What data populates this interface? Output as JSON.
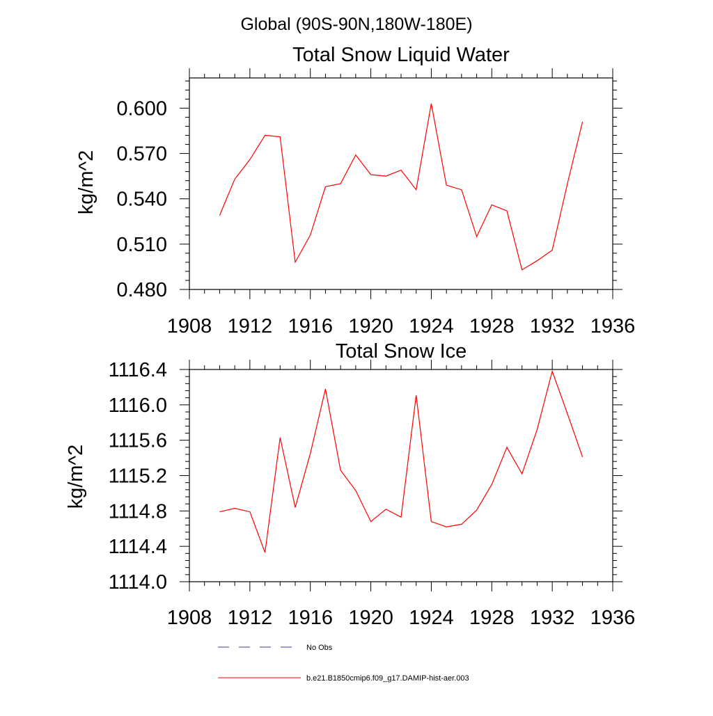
{
  "figure": {
    "suptitle": "Global (90S-90N,180W-180E)"
  },
  "chart_data": [
    {
      "type": "line",
      "title": "Total Snow Liquid Water",
      "xlabel": "",
      "ylabel": "kg/m^2",
      "xlim": [
        1908,
        1936
      ],
      "ylim": [
        0.48,
        0.62
      ],
      "x_ticks": [
        "1908",
        "1912",
        "1916",
        "1920",
        "1924",
        "1928",
        "1932",
        "1936"
      ],
      "y_ticks": [
        "0.480",
        "0.510",
        "0.540",
        "0.570",
        "0.600"
      ],
      "y_tick_values": [
        0.48,
        0.51,
        0.54,
        0.57,
        0.6
      ],
      "x_tick_values": [
        1908,
        1912,
        1916,
        1920,
        1924,
        1928,
        1932,
        1936
      ],
      "grid": false,
      "series": [
        {
          "name": "b.e21.B1850cmip6.f09_g17.DAMIP-hist-aer.003",
          "color": "#ff0000",
          "x": [
            1910,
            1911,
            1912,
            1913,
            1914,
            1915,
            1916,
            1917,
            1918,
            1919,
            1920,
            1921,
            1922,
            1923,
            1924,
            1925,
            1926,
            1927,
            1928,
            1929,
            1930,
            1931,
            1932,
            1933,
            1934
          ],
          "values": [
            0.529,
            0.553,
            0.566,
            0.582,
            0.581,
            0.498,
            0.516,
            0.548,
            0.55,
            0.569,
            0.556,
            0.555,
            0.559,
            0.546,
            0.603,
            0.549,
            0.546,
            0.515,
            0.536,
            0.532,
            0.493,
            0.499,
            0.506,
            0.55,
            0.591
          ]
        }
      ]
    },
    {
      "type": "line",
      "title": "Total Snow Ice",
      "xlabel": "",
      "ylabel": "kg/m^2",
      "xlim": [
        1908,
        1936
      ],
      "ylim": [
        1114.0,
        1116.4
      ],
      "x_ticks": [
        "1908",
        "1912",
        "1916",
        "1920",
        "1924",
        "1928",
        "1932",
        "1936"
      ],
      "y_ticks": [
        "1114.0",
        "1114.4",
        "1114.8",
        "1115.2",
        "1115.6",
        "1116.0",
        "1116.4"
      ],
      "y_tick_values": [
        1114.0,
        1114.4,
        1114.8,
        1115.2,
        1115.6,
        1116.0,
        1116.4
      ],
      "x_tick_values": [
        1908,
        1912,
        1916,
        1920,
        1924,
        1928,
        1932,
        1936
      ],
      "grid": false,
      "series": [
        {
          "name": "b.e21.B1850cmip6.f09_g17.DAMIP-hist-aer.003",
          "color": "#ff0000",
          "x": [
            1910,
            1911,
            1912,
            1913,
            1914,
            1915,
            1916,
            1917,
            1918,
            1919,
            1920,
            1921,
            1922,
            1923,
            1924,
            1925,
            1926,
            1927,
            1928,
            1929,
            1930,
            1931,
            1932,
            1933,
            1934
          ],
          "values": [
            1114.79,
            1114.83,
            1114.79,
            1114.33,
            1115.63,
            1114.84,
            1115.45,
            1116.18,
            1115.26,
            1115.03,
            1114.68,
            1114.82,
            1114.73,
            1116.11,
            1114.68,
            1114.62,
            1114.65,
            1114.81,
            1115.1,
            1115.52,
            1115.22,
            1115.72,
            1116.38,
            1115.9,
            1115.41
          ]
        }
      ]
    }
  ],
  "legend": {
    "placement": "bottom",
    "items": [
      {
        "label": "No Obs",
        "color": "#3b3b8f",
        "style": "dashed"
      },
      {
        "label": "b.e21.B1850cmip6.f09_g17.DAMIP-hist-aer.003",
        "color": "#ff0000",
        "style": "solid"
      }
    ]
  }
}
